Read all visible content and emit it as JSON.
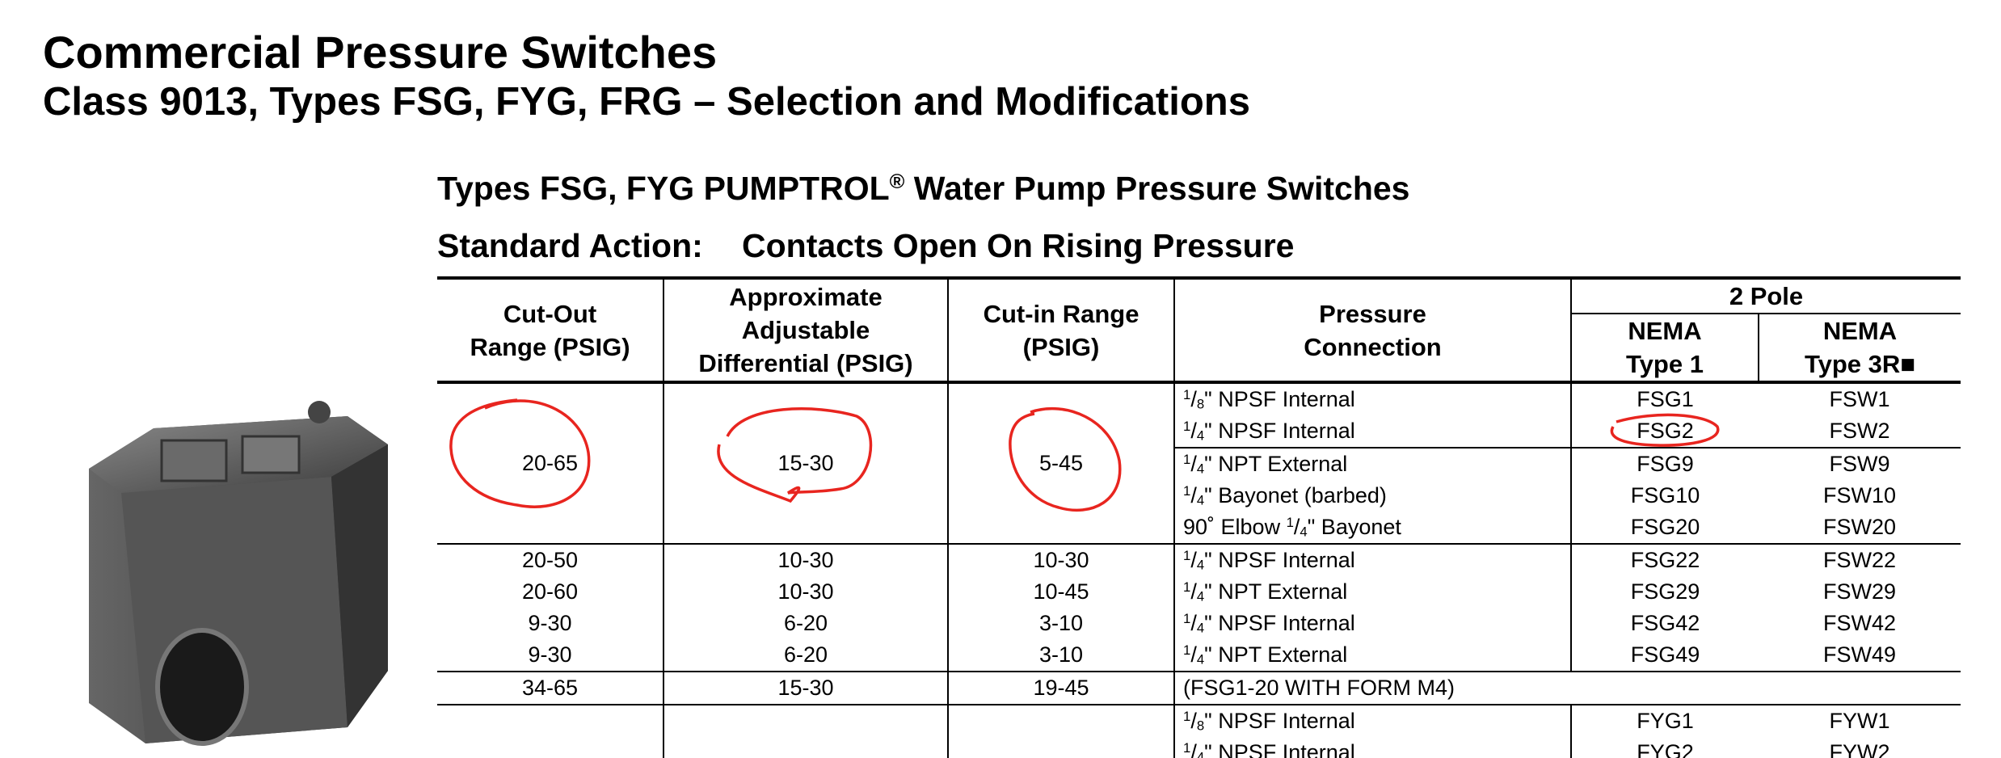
{
  "header": {
    "title": "Commercial Pressure Switches",
    "subtitle": "Class 9013, Types FSG, FYG, FRG – Selection and Modifications"
  },
  "section": {
    "title": "Types FSG, FYG PUMPTROL® Water Pump Pressure Switches",
    "action_label": "Standard Action:",
    "action": "Contacts Open On Rising Pressure"
  },
  "table": {
    "columns": {
      "cutout": [
        "Cut-Out",
        "Range (PSIG)"
      ],
      "differential": [
        "Approximate",
        "Adjustable",
        "Differential (PSIG)"
      ],
      "cutin": [
        "Cut-in Range",
        "(PSIG)"
      ],
      "connection": [
        "Pressure",
        "Connection"
      ],
      "poles": "2 Pole",
      "type1": [
        "NEMA",
        "Type 1"
      ],
      "type3r": [
        "NEMA",
        "Type 3R■"
      ]
    },
    "groups": [
      {
        "cutout": "20-65",
        "differential": "15-30",
        "cutin": "5-45",
        "rows": [
          {
            "connection": "1/8\" NPSF Internal",
            "type1": "FSG1",
            "type3r": "FSW1"
          },
          {
            "connection": "1/4\" NPSF Internal",
            "type1": "FSG2",
            "type3r": "FSW2"
          },
          {
            "connection": "1/4\" NPT External",
            "type1": "FSG9",
            "type3r": "FSW9"
          },
          {
            "connection": "1/4\" Bayonet (barbed)",
            "type1": "FSG10",
            "type3r": "FSW10"
          },
          {
            "connection": "90˚ Elbow 1/4\" Bayonet",
            "type1": "FSG20",
            "type3r": "FSW20"
          }
        ]
      },
      {
        "cutout": "20-50",
        "differential": "10-30",
        "cutin": "10-30",
        "rows": [
          {
            "connection": "1/4\" NPSF Internal",
            "type1": "FSG22",
            "type3r": "FSW22"
          }
        ]
      },
      {
        "cutout": "20-60",
        "differential": "10-30",
        "cutin": "10-45",
        "rows": [
          {
            "connection": "1/4\" NPT External",
            "type1": "FSG29",
            "type3r": "FSW29"
          }
        ]
      },
      {
        "cutout": "9-30",
        "differential": "6-20",
        "cutin": "3-10",
        "rows": [
          {
            "connection": "1/4\" NPSF Internal",
            "type1": "FSG42",
            "type3r": "FSW42"
          }
        ]
      },
      {
        "cutout": "9-30",
        "differential": "6-20",
        "cutin": "3-10",
        "rows": [
          {
            "connection": "1/4\" NPT External",
            "type1": "FSG49",
            "type3r": "FSW49"
          }
        ]
      },
      {
        "cutout": "34-65",
        "differential": "15-30",
        "cutin": "19-45",
        "rows": [
          {
            "note": "(FSG1-20 WITH FORM M4)"
          }
        ]
      },
      {
        "rows": [
          {
            "connection": "1/8\" NPSF Internal",
            "type1": "FYG1",
            "type3r": "FYW1"
          },
          {
            "connection": "1/4\" NPSF Internal",
            "type1": "FYG2",
            "type3r": "FYW2"
          }
        ]
      }
    ]
  }
}
